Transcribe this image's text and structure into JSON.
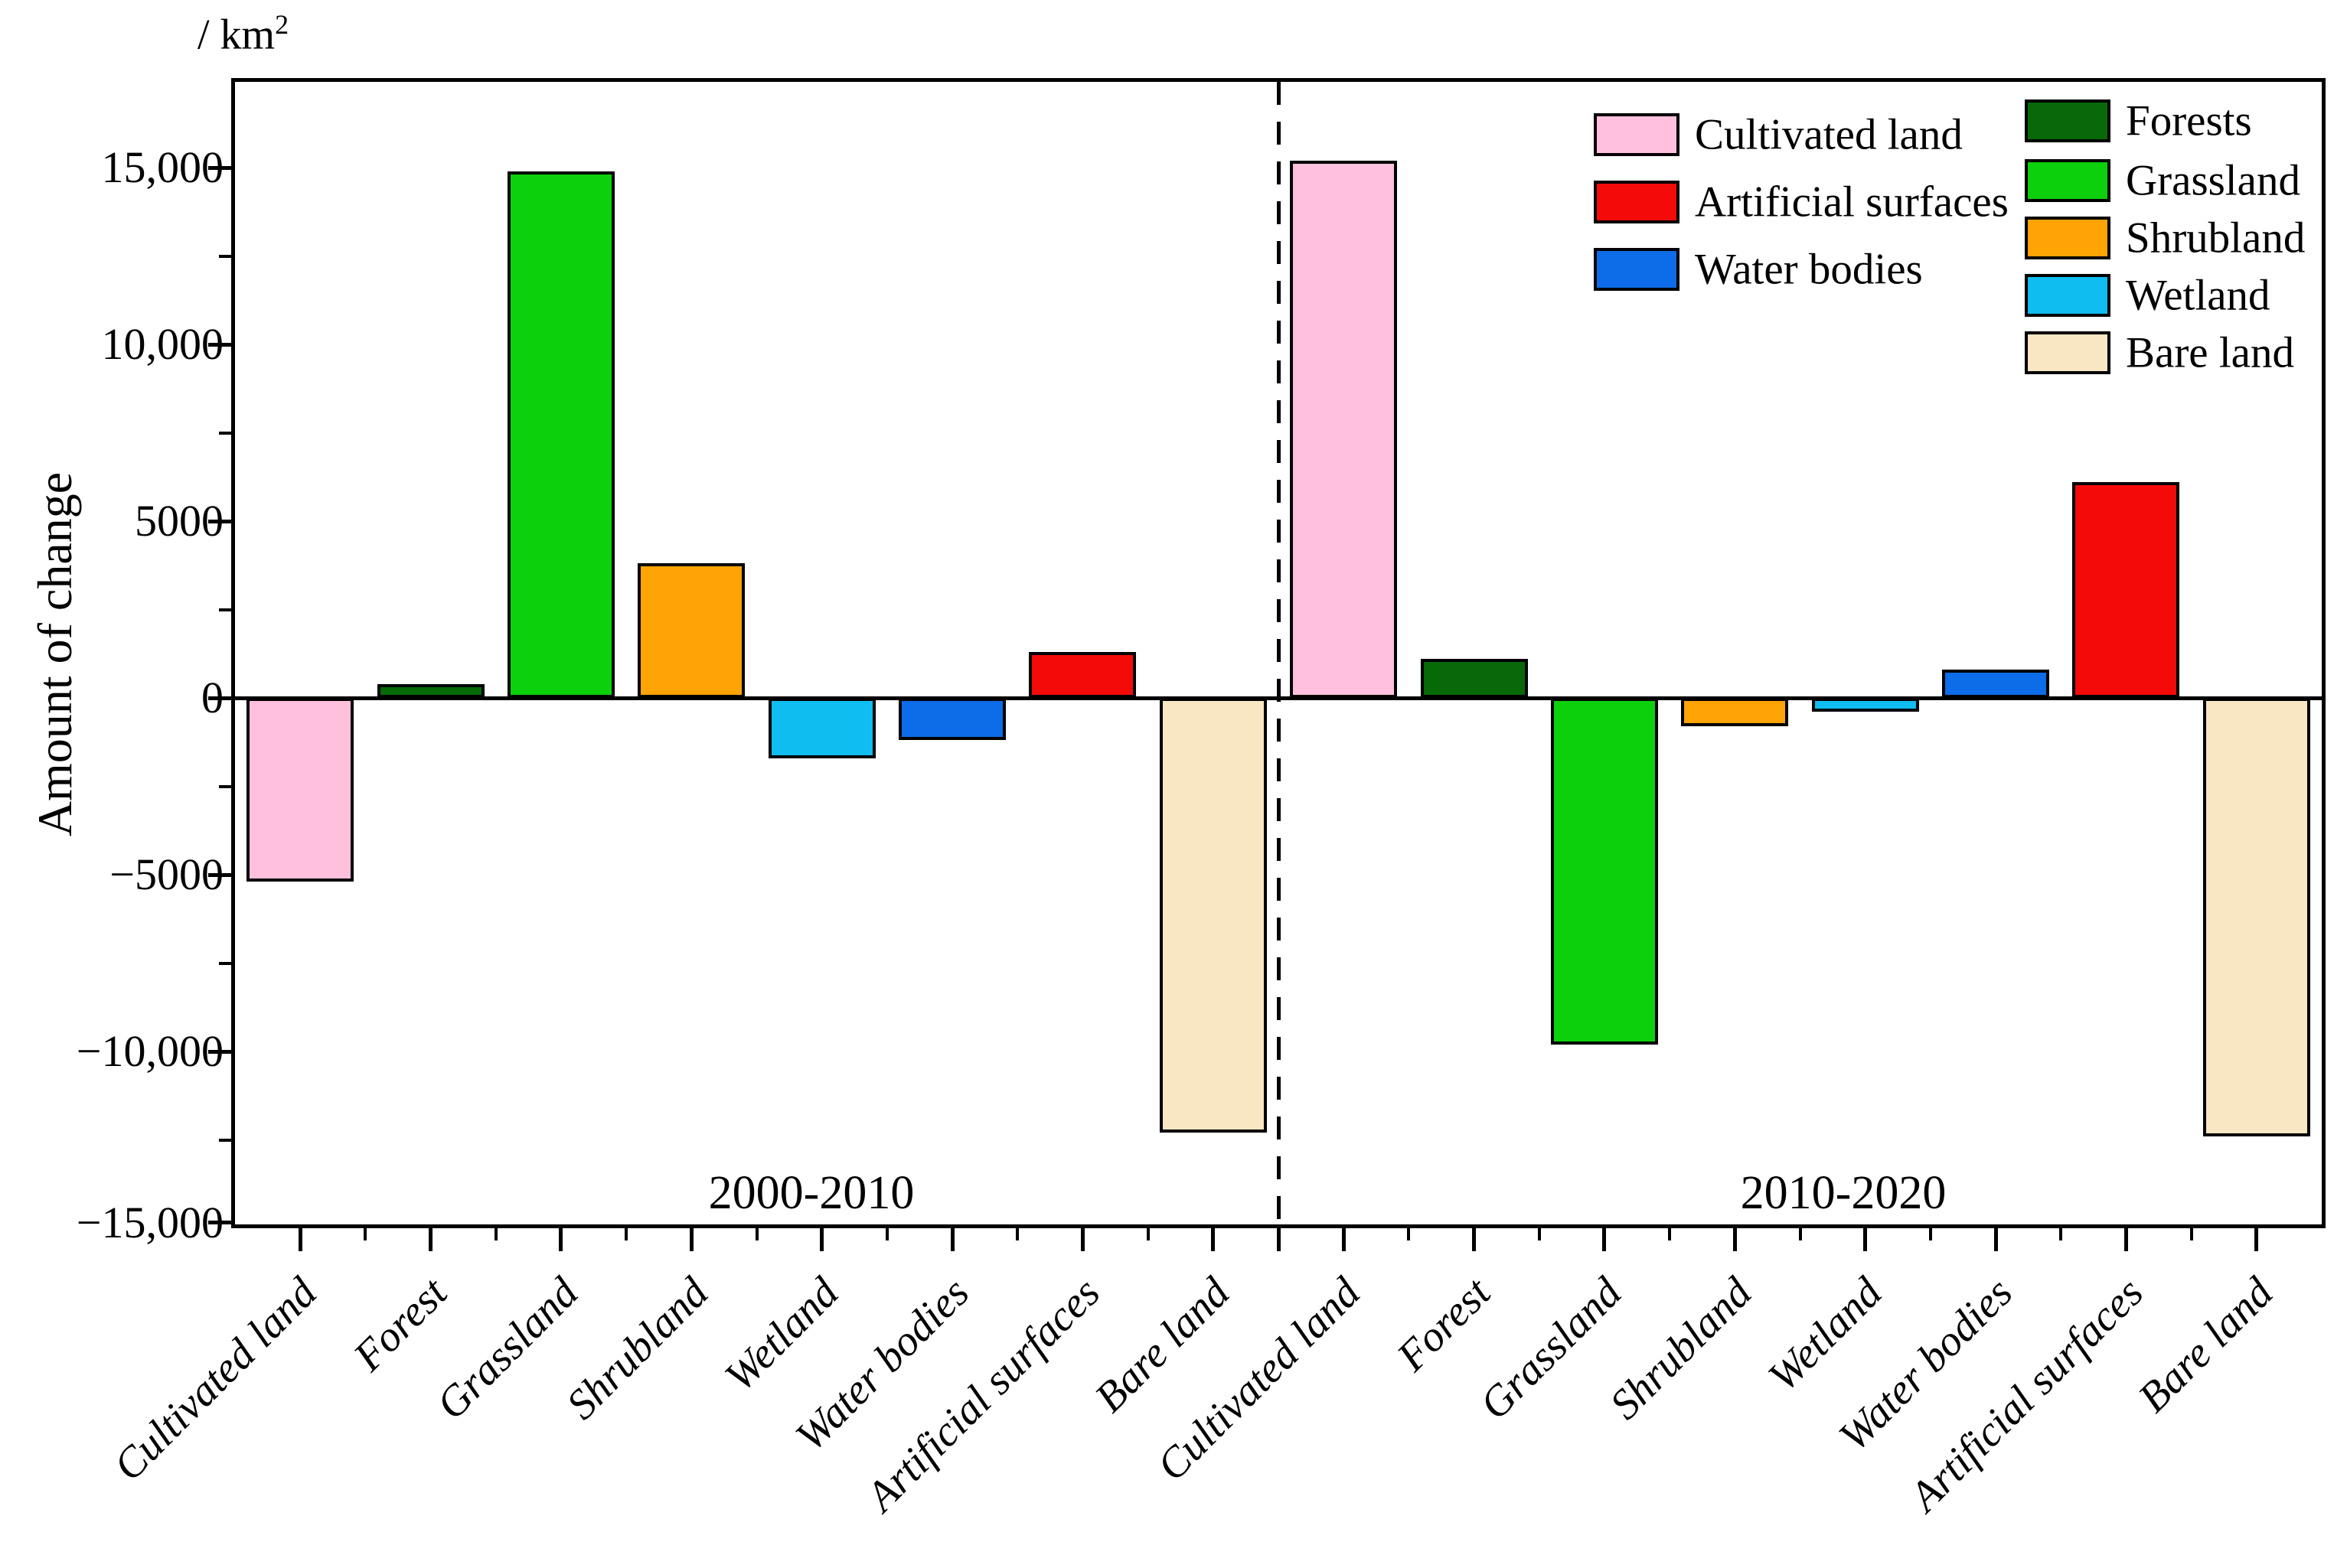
{
  "unit_label": {
    "prefix": "/ km",
    "superscript": "2"
  },
  "y_axis": {
    "label": "Amount of change",
    "ticks": [
      {
        "value": 15000,
        "label": "15,000"
      },
      {
        "value": 10000,
        "label": "10,000"
      },
      {
        "value": 5000,
        "label": "5000"
      },
      {
        "value": 0,
        "label": "0"
      },
      {
        "value": -5000,
        "label": "−5000"
      },
      {
        "value": -10000,
        "label": "−10,000"
      },
      {
        "value": -15000,
        "label": "−15,000"
      }
    ],
    "minor_tick_values": [
      12500,
      7500,
      2500,
      -2500,
      -7500,
      -12500
    ]
  },
  "x_axis": {
    "categories": [
      "Cultivated land",
      "Forest",
      "Grassland",
      "Shrubland",
      "Wetland",
      "Water bodies",
      "Artificial surfaces",
      "Bare land"
    ]
  },
  "periods": [
    "2000-2010",
    "2010-2020"
  ],
  "legend": {
    "columns": [
      [
        {
          "label": "Cultivated land",
          "color": "#ffc0dd"
        },
        {
          "label": "Artificial surfaces",
          "color": "#f50a0a"
        },
        {
          "label": "Water bodies",
          "color": "#0d6ce8"
        }
      ],
      [
        {
          "label": "Forests",
          "color": "#076907"
        },
        {
          "label": "Grassland",
          "color": "#0bd00b"
        },
        {
          "label": "Shrubland",
          "color": "#ffa405"
        },
        {
          "label": "Wetland",
          "color": "#0fbdf0"
        },
        {
          "label": "Bare land",
          "color": "#f9e6c2"
        }
      ]
    ]
  },
  "chart_data": {
    "type": "bar",
    "title": "",
    "ylabel": "Amount of change",
    "y_unit": "km²",
    "categories": [
      "Cultivated land",
      "Forest",
      "Grassland",
      "Shrubland",
      "Wetland",
      "Water bodies",
      "Artificial surfaces",
      "Bare land"
    ],
    "series": [
      {
        "name": "2000-2010",
        "values": [
          -5200,
          400,
          14900,
          3800,
          -1700,
          -1200,
          1300,
          -12300
        ]
      },
      {
        "name": "2010-2020",
        "values": [
          15200,
          1100,
          -9800,
          -800,
          -400,
          800,
          6100,
          -12400
        ]
      }
    ],
    "category_colors": {
      "Cultivated land": "#ffc0dd",
      "Forest": "#076907",
      "Grassland": "#0bd00b",
      "Shrubland": "#ffa405",
      "Wetland": "#0fbdf0",
      "Water bodies": "#0d6ce8",
      "Artificial surfaces": "#f50a0a",
      "Bare land": "#f9e6c2"
    },
    "ylim": [
      -15000,
      17400
    ],
    "ytick_interval": 5000,
    "minor_tick_interval": 2500,
    "grid": false,
    "legend_position": "upper-right",
    "group_divider": "dashed-vertical-between-periods"
  }
}
